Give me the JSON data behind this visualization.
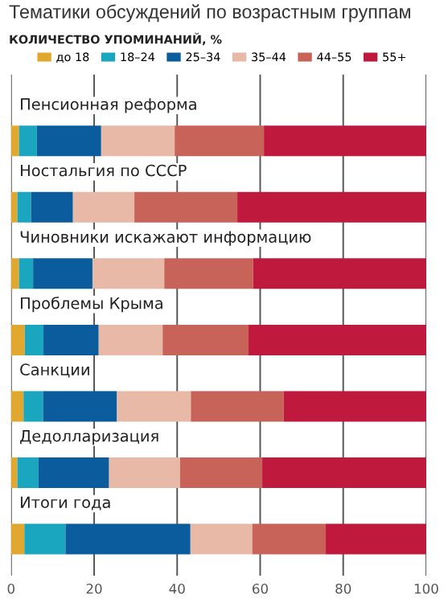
{
  "chart_data": {
    "type": "bar",
    "orientation": "horizontal",
    "stacked": true,
    "title": "Тематики обсуждений по возрастным группам",
    "subtitle": "КОЛИЧЕСТВО УПОМИНАНИЙ, %",
    "categories": [
      "Пенсионная реформа",
      "Ностальгия по СССР",
      "Чиновники искажают информацию",
      "Проблемы Крыма",
      "Санкции",
      "Дедолларизация",
      "Итоги года"
    ],
    "series": [
      {
        "name": "до 18",
        "color": "#e0a82e",
        "values": [
          1.9,
          1.5,
          1.9,
          3.3,
          3.0,
          1.5,
          3.2
        ]
      },
      {
        "name": "18–24",
        "color": "#1aa6bf",
        "values": [
          4.3,
          3.3,
          3.4,
          4.5,
          4.7,
          5.1,
          9.9
        ]
      },
      {
        "name": "25–34",
        "color": "#0a5c9c",
        "values": [
          15.5,
          10.1,
          14.3,
          13.3,
          17.8,
          17.0,
          30.1
        ]
      },
      {
        "name": "35–44",
        "color": "#e8b9a6",
        "values": [
          17.7,
          14.8,
          17.3,
          15.4,
          17.8,
          17.1,
          14.9
        ]
      },
      {
        "name": "44–55",
        "color": "#c8635a",
        "values": [
          21.5,
          24.8,
          21.4,
          20.7,
          22.4,
          19.8,
          17.7
        ]
      },
      {
        "name": "55+",
        "color": "#c0193e",
        "values": [
          39.1,
          45.5,
          41.7,
          42.8,
          34.3,
          39.5,
          24.2
        ]
      }
    ],
    "xlim": [
      0,
      100
    ],
    "xticks": [
      0,
      20,
      40,
      60,
      80,
      100
    ],
    "grid": "x",
    "legend": "top",
    "tick_labels": "x"
  }
}
